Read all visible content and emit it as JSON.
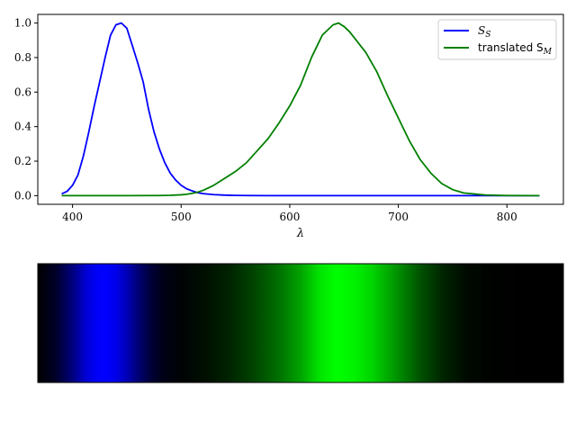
{
  "chart_data": [
    {
      "type": "line",
      "xlabel": "λ",
      "ylabel": "",
      "xlim": [
        368,
        852
      ],
      "ylim": [
        -0.05,
        1.05
      ],
      "grid": false,
      "legend_position": "upper-right",
      "xticks": [
        400,
        500,
        600,
        700,
        800
      ],
      "yticks": [
        0.0,
        0.2,
        0.4,
        0.6,
        0.8,
        1.0
      ],
      "xtick_labels": [
        "400",
        "500",
        "600",
        "700",
        "800"
      ],
      "ytick_labels": [
        "0.0",
        "0.2",
        "0.4",
        "0.6",
        "0.8",
        "1.0"
      ],
      "series": [
        {
          "name": "S",
          "name_sub": "S",
          "legend_label": "S_S",
          "color": "#0000ff",
          "x": [
            390,
            395,
            400,
            405,
            410,
            415,
            420,
            425,
            430,
            435,
            440,
            445,
            450,
            455,
            460,
            465,
            470,
            475,
            480,
            485,
            490,
            495,
            500,
            505,
            510,
            515,
            520,
            530,
            540,
            550,
            560,
            580,
            600,
            650,
            700,
            750,
            800,
            830
          ],
          "y": [
            0.01,
            0.025,
            0.06,
            0.12,
            0.23,
            0.37,
            0.52,
            0.66,
            0.8,
            0.93,
            0.99,
            1.0,
            0.97,
            0.87,
            0.77,
            0.66,
            0.5,
            0.37,
            0.27,
            0.19,
            0.13,
            0.09,
            0.06,
            0.04,
            0.028,
            0.018,
            0.012,
            0.006,
            0.003,
            0.0015,
            0.0008,
            0.0003,
            0.0001,
            0.0,
            0.0,
            0.0,
            0.0,
            0.0
          ]
        },
        {
          "name": "translated S",
          "name_sub": "M",
          "legend_label": "translated S_M",
          "color": "#008000",
          "x": [
            390,
            450,
            480,
            490,
            500,
            505,
            510,
            515,
            520,
            530,
            540,
            550,
            560,
            570,
            580,
            590,
            600,
            610,
            615,
            620,
            630,
            640,
            645,
            650,
            655,
            660,
            670,
            680,
            690,
            700,
            710,
            720,
            730,
            740,
            750,
            760,
            780,
            800,
            830
          ],
          "y": [
            0.0,
            0.0,
            0.001,
            0.002,
            0.005,
            0.008,
            0.013,
            0.02,
            0.03,
            0.06,
            0.1,
            0.14,
            0.19,
            0.26,
            0.33,
            0.42,
            0.52,
            0.64,
            0.72,
            0.8,
            0.93,
            0.99,
            1.0,
            0.98,
            0.95,
            0.91,
            0.83,
            0.72,
            0.58,
            0.45,
            0.32,
            0.21,
            0.13,
            0.07,
            0.035,
            0.016,
            0.004,
            0.001,
            0.0
          ]
        }
      ]
    },
    {
      "type": "heatmap",
      "description_channels": "rgb",
      "xlim": [
        390,
        830
      ],
      "stops": [
        {
          "x": 390,
          "r": 0,
          "g": 0,
          "b": 0
        },
        {
          "x": 405,
          "r": 0,
          "g": 0,
          "b": 40
        },
        {
          "x": 420,
          "r": 0,
          "g": 0,
          "b": 130
        },
        {
          "x": 430,
          "r": 0,
          "g": 0,
          "b": 210
        },
        {
          "x": 440,
          "r": 0,
          "g": 0,
          "b": 250
        },
        {
          "x": 447,
          "r": 0,
          "g": 0,
          "b": 255
        },
        {
          "x": 455,
          "r": 0,
          "g": 0,
          "b": 235
        },
        {
          "x": 465,
          "r": 0,
          "g": 0,
          "b": 180
        },
        {
          "x": 475,
          "r": 0,
          "g": 0,
          "b": 110
        },
        {
          "x": 485,
          "r": 0,
          "g": 0,
          "b": 55
        },
        {
          "x": 495,
          "r": 0,
          "g": 0,
          "b": 22
        },
        {
          "x": 510,
          "r": 0,
          "g": 3,
          "b": 5
        },
        {
          "x": 530,
          "r": 0,
          "g": 15,
          "b": 0
        },
        {
          "x": 550,
          "r": 0,
          "g": 35,
          "b": 0
        },
        {
          "x": 570,
          "r": 0,
          "g": 66,
          "b": 0
        },
        {
          "x": 590,
          "r": 0,
          "g": 108,
          "b": 0
        },
        {
          "x": 610,
          "r": 0,
          "g": 163,
          "b": 0
        },
        {
          "x": 625,
          "r": 0,
          "g": 225,
          "b": 0
        },
        {
          "x": 640,
          "r": 0,
          "g": 255,
          "b": 0
        },
        {
          "x": 655,
          "r": 0,
          "g": 242,
          "b": 0
        },
        {
          "x": 670,
          "r": 0,
          "g": 212,
          "b": 0
        },
        {
          "x": 690,
          "r": 0,
          "g": 148,
          "b": 0
        },
        {
          "x": 710,
          "r": 0,
          "g": 82,
          "b": 0
        },
        {
          "x": 730,
          "r": 0,
          "g": 34,
          "b": 0
        },
        {
          "x": 750,
          "r": 0,
          "g": 9,
          "b": 0
        },
        {
          "x": 770,
          "r": 0,
          "g": 2,
          "b": 0
        },
        {
          "x": 800,
          "r": 0,
          "g": 0,
          "b": 0
        },
        {
          "x": 830,
          "r": 0,
          "g": 0,
          "b": 0
        }
      ]
    }
  ]
}
